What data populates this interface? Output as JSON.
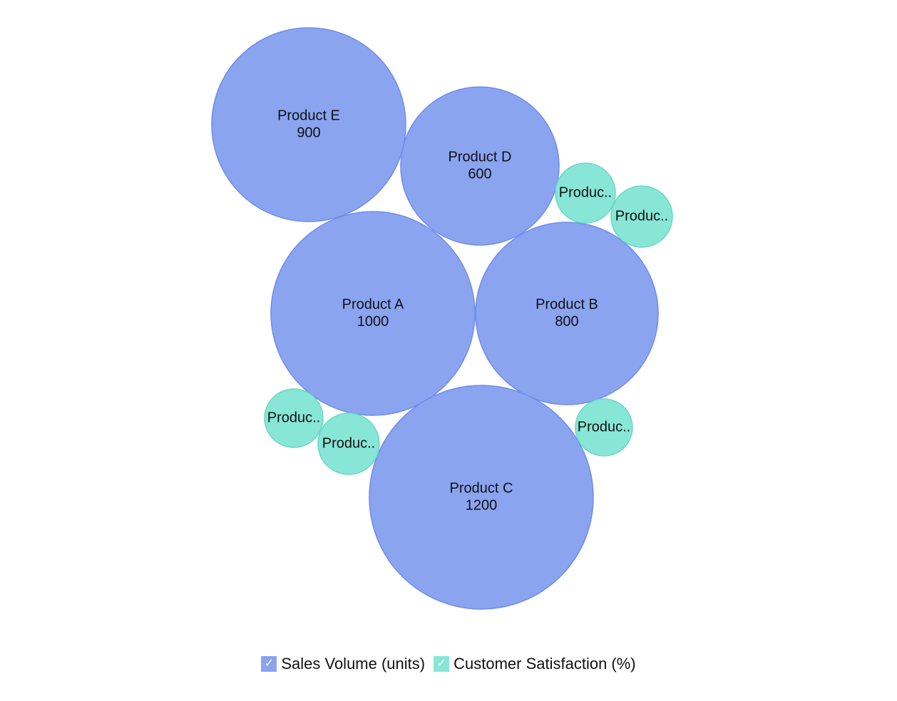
{
  "chart_data": {
    "type": "bubble",
    "series": [
      {
        "name": "Sales Volume (units)",
        "color": "#8aa4f0",
        "stroke": "#6f8cea",
        "points": [
          {
            "label": "Product A",
            "value": 1000
          },
          {
            "label": "Product B",
            "value": 800
          },
          {
            "label": "Product C",
            "value": 1200
          },
          {
            "label": "Product D",
            "value": 600
          },
          {
            "label": "Product E",
            "value": 900
          }
        ]
      },
      {
        "name": "Customer Satisfaction (%)",
        "color": "#88e6d6",
        "stroke": "#6ad8c4",
        "points": [
          {
            "label": "Produc.."
          },
          {
            "label": "Produc.."
          },
          {
            "label": "Produc.."
          },
          {
            "label": "Produc.."
          },
          {
            "label": "Produc.."
          }
        ]
      }
    ],
    "legend": {
      "position": "bottom",
      "check_glyph": "✓"
    }
  }
}
